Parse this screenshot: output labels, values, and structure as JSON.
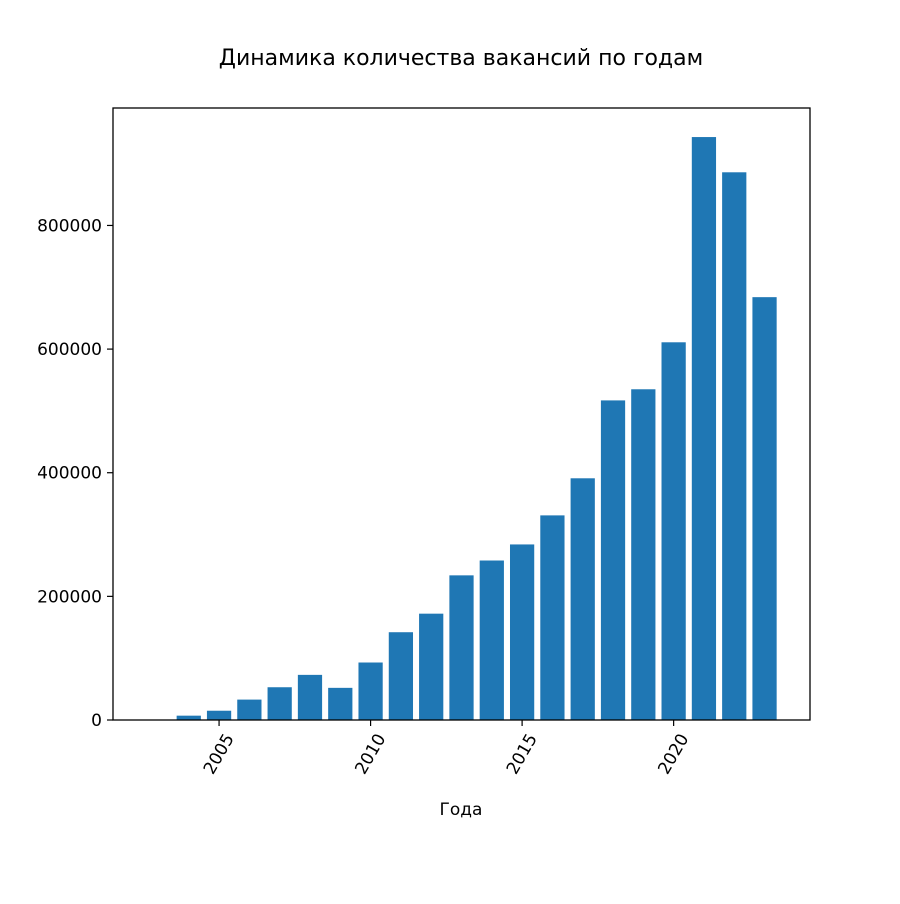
{
  "chart_data": {
    "type": "bar",
    "title": "Динамика количества вакансий по годам",
    "xlabel": "Года",
    "ylabel": "",
    "x": [
      2003,
      2004,
      2005,
      2006,
      2007,
      2008,
      2009,
      2010,
      2011,
      2012,
      2013,
      2014,
      2015,
      2016,
      2017,
      2018,
      2019,
      2020,
      2021,
      2022,
      2023
    ],
    "values": [
      500,
      7000,
      15000,
      33000,
      53000,
      73000,
      52000,
      93000,
      142000,
      172000,
      234000,
      258000,
      284000,
      331000,
      391000,
      517000,
      535000,
      611000,
      943000,
      886000,
      684000
    ],
    "xlim": [
      2001.5,
      2024.5
    ],
    "ylim": [
      0,
      990000
    ],
    "xticks": [
      2005,
      2010,
      2015,
      2020
    ],
    "xtick_labels": [
      "2005",
      "2010",
      "2015",
      "2020"
    ],
    "xtick_rotation": 60,
    "yticks": [
      0,
      200000,
      400000,
      600000,
      800000
    ],
    "ytick_labels": [
      "0",
      "200000",
      "400000",
      "600000",
      "800000"
    ],
    "bar_color": "#1f77b4",
    "grid": false,
    "legend": "none"
  }
}
